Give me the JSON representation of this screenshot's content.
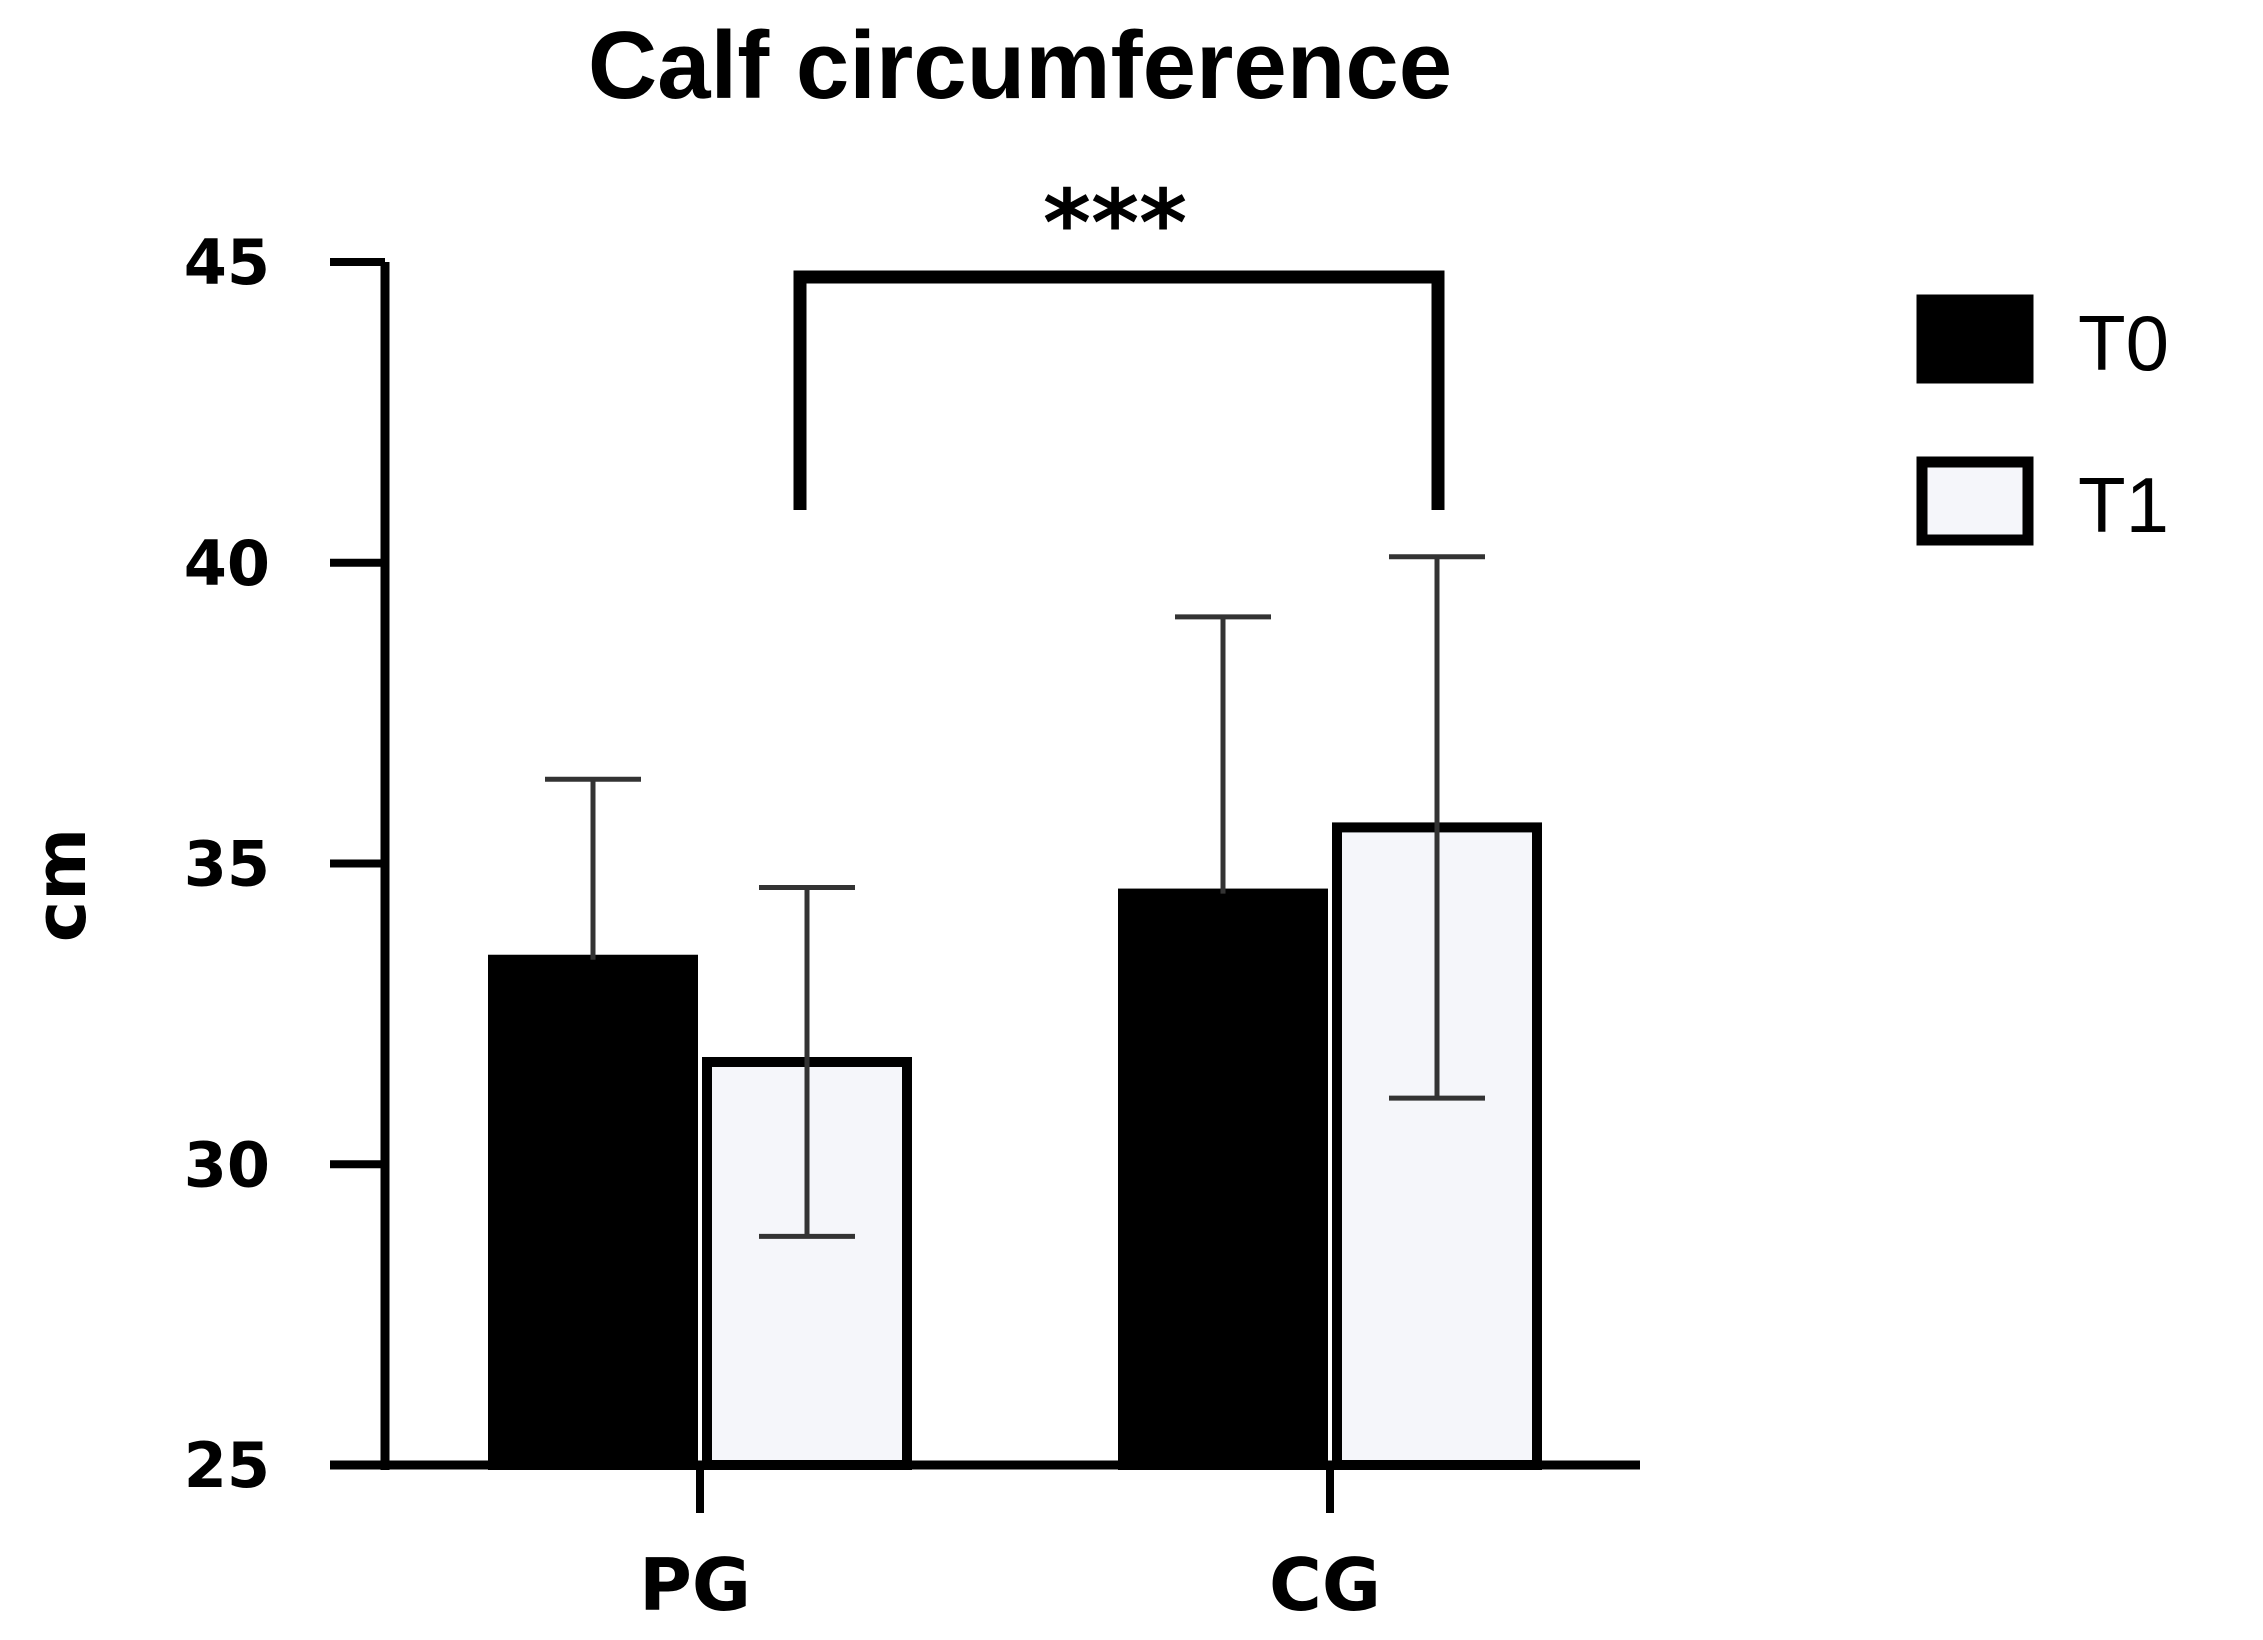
{
  "chart_data": {
    "type": "bar",
    "title": "Calf circumference",
    "xlabel": "",
    "ylabel": "cm",
    "ylim": [
      25,
      45
    ],
    "yticks": [
      25,
      30,
      35,
      40,
      45
    ],
    "categories": [
      "PG",
      "CG"
    ],
    "series": [
      {
        "name": "T0",
        "values": [
          33.4,
          34.5
        ],
        "errors": [
          3.0,
          4.6
        ],
        "fill": "#000000"
      },
      {
        "name": "T1",
        "values": [
          31.7,
          35.6
        ],
        "errors": [
          2.9,
          4.5
        ],
        "fill": "#f5f6fa"
      }
    ],
    "grid": false,
    "legend": "top-right",
    "annotation": {
      "label": "***",
      "between": [
        "PG",
        "CG"
      ]
    }
  }
}
